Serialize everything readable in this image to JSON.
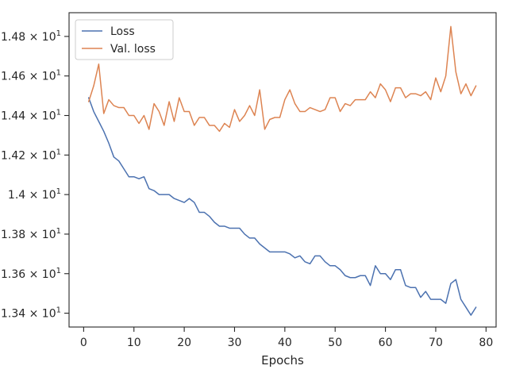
{
  "chart_data": {
    "type": "line",
    "title": "",
    "xlabel": "Epochs",
    "ylabel": "",
    "xlim": [
      -2.9,
      82.0
    ],
    "ylim": [
      13.33,
      14.92
    ],
    "grid": false,
    "legend_position": "top-left",
    "x_ticks": [
      {
        "value": 0,
        "label": "0"
      },
      {
        "value": 10,
        "label": "10"
      },
      {
        "value": 20,
        "label": "20"
      },
      {
        "value": 30,
        "label": "30"
      },
      {
        "value": 40,
        "label": "40"
      },
      {
        "value": 50,
        "label": "50"
      },
      {
        "value": 60,
        "label": "60"
      },
      {
        "value": 70,
        "label": "70"
      },
      {
        "value": 80,
        "label": "80"
      }
    ],
    "y_ticks": [
      {
        "value": 13.4,
        "mantissa": "1.34",
        "exponent": "1"
      },
      {
        "value": 13.6,
        "mantissa": "1.36",
        "exponent": "1"
      },
      {
        "value": 13.8,
        "mantissa": "1.38",
        "exponent": "1"
      },
      {
        "value": 14.0,
        "mantissa": "1.4",
        "exponent": "1"
      },
      {
        "value": 14.2,
        "mantissa": "1.42",
        "exponent": "1"
      },
      {
        "value": 14.4,
        "mantissa": "1.44",
        "exponent": "1"
      },
      {
        "value": 14.6,
        "mantissa": "1.46",
        "exponent": "1"
      },
      {
        "value": 14.8,
        "mantissa": "1.48",
        "exponent": "1"
      }
    ],
    "x": [
      1,
      2,
      3,
      4,
      5,
      6,
      7,
      8,
      9,
      10,
      11,
      12,
      13,
      14,
      15,
      16,
      17,
      18,
      19,
      20,
      21,
      22,
      23,
      24,
      25,
      26,
      27,
      28,
      29,
      30,
      31,
      32,
      33,
      34,
      35,
      36,
      37,
      38,
      39,
      40,
      41,
      42,
      43,
      44,
      45,
      46,
      47,
      48,
      49,
      50,
      51,
      52,
      53,
      54,
      55,
      56,
      57,
      58,
      59,
      60,
      61,
      62,
      63,
      64,
      65,
      66,
      67,
      68,
      69,
      70,
      71,
      72,
      73,
      74,
      75,
      76,
      77,
      78
    ],
    "series": [
      {
        "name": "Loss",
        "color": "#4c72b0",
        "values": [
          14.49,
          14.42,
          14.37,
          14.32,
          14.26,
          14.19,
          14.17,
          14.13,
          14.09,
          14.09,
          14.08,
          14.09,
          14.03,
          14.02,
          14.0,
          14.0,
          14.0,
          13.98,
          13.97,
          13.96,
          13.98,
          13.96,
          13.91,
          13.91,
          13.89,
          13.86,
          13.84,
          13.84,
          13.83,
          13.83,
          13.83,
          13.8,
          13.78,
          13.78,
          13.75,
          13.73,
          13.71,
          13.71,
          13.71,
          13.71,
          13.7,
          13.68,
          13.69,
          13.66,
          13.65,
          13.69,
          13.69,
          13.66,
          13.64,
          13.64,
          13.62,
          13.59,
          13.58,
          13.58,
          13.59,
          13.59,
          13.54,
          13.64,
          13.6,
          13.6,
          13.57,
          13.62,
          13.62,
          13.54,
          13.53,
          13.53,
          13.48,
          13.51,
          13.47,
          13.47,
          13.47,
          13.45,
          13.55,
          13.57,
          13.47,
          13.43,
          13.39,
          13.43
        ]
      },
      {
        "name": "Val. loss",
        "color": "#dd8452",
        "values": [
          14.47,
          14.55,
          14.66,
          14.41,
          14.48,
          14.45,
          14.44,
          14.44,
          14.4,
          14.4,
          14.36,
          14.4,
          14.33,
          14.46,
          14.42,
          14.35,
          14.47,
          14.37,
          14.49,
          14.42,
          14.42,
          14.35,
          14.39,
          14.39,
          14.35,
          14.35,
          14.32,
          14.36,
          14.34,
          14.43,
          14.37,
          14.4,
          14.45,
          14.4,
          14.53,
          14.33,
          14.38,
          14.39,
          14.39,
          14.48,
          14.53,
          14.46,
          14.42,
          14.42,
          14.44,
          14.43,
          14.42,
          14.43,
          14.49,
          14.49,
          14.42,
          14.46,
          14.45,
          14.48,
          14.48,
          14.48,
          14.52,
          14.49,
          14.56,
          14.53,
          14.47,
          14.54,
          14.54,
          14.49,
          14.51,
          14.51,
          14.5,
          14.52,
          14.48,
          14.59,
          14.52,
          14.6,
          14.85,
          14.62,
          14.51,
          14.56,
          14.5,
          14.55
        ]
      }
    ]
  }
}
